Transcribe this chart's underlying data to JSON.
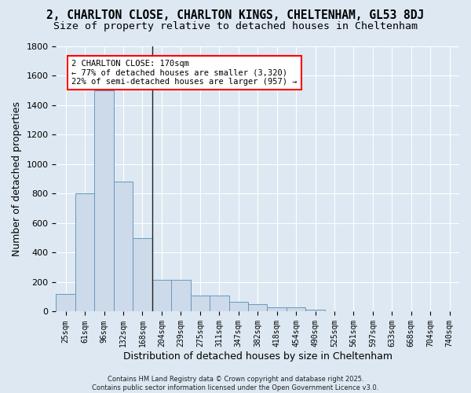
{
  "title_line1": "2, CHARLTON CLOSE, CHARLTON KINGS, CHELTENHAM, GL53 8DJ",
  "title_line2": "Size of property relative to detached houses in Cheltenham",
  "xlabel": "Distribution of detached houses by size in Cheltenham",
  "ylabel": "Number of detached properties",
  "bar_color": "#cddaea",
  "bar_edge_color": "#6699bb",
  "bg_color": "#dde8f2",
  "grid_color": "#ffffff",
  "categories": [
    "25sqm",
    "61sqm",
    "96sqm",
    "132sqm",
    "168sqm",
    "204sqm",
    "239sqm",
    "275sqm",
    "311sqm",
    "347sqm",
    "382sqm",
    "418sqm",
    "454sqm",
    "490sqm",
    "525sqm",
    "561sqm",
    "597sqm",
    "633sqm",
    "668sqm",
    "704sqm",
    "740sqm"
  ],
  "values": [
    120,
    800,
    1500,
    880,
    500,
    215,
    215,
    110,
    110,
    65,
    50,
    30,
    30,
    12,
    5,
    0,
    0,
    0,
    0,
    5,
    0
  ],
  "ylim": [
    0,
    1800
  ],
  "yticks": [
    0,
    200,
    400,
    600,
    800,
    1000,
    1200,
    1400,
    1600,
    1800
  ],
  "annotation_line1": "2 CHARLTON CLOSE: 170sqm",
  "annotation_line2": "← 77% of detached houses are smaller (3,320)",
  "annotation_line3": "22% of semi-detached houses are larger (957) →",
  "vline_index": 4,
  "copyright_text": "Contains HM Land Registry data © Crown copyright and database right 2025.\nContains public sector information licensed under the Open Government Licence v3.0.",
  "title_fontsize": 10.5,
  "subtitle_fontsize": 9.5,
  "annotation_fontsize": 7.5,
  "xlabel_fontsize": 9,
  "ylabel_fontsize": 9,
  "tick_fontsize": 7,
  "ytick_fontsize": 8
}
